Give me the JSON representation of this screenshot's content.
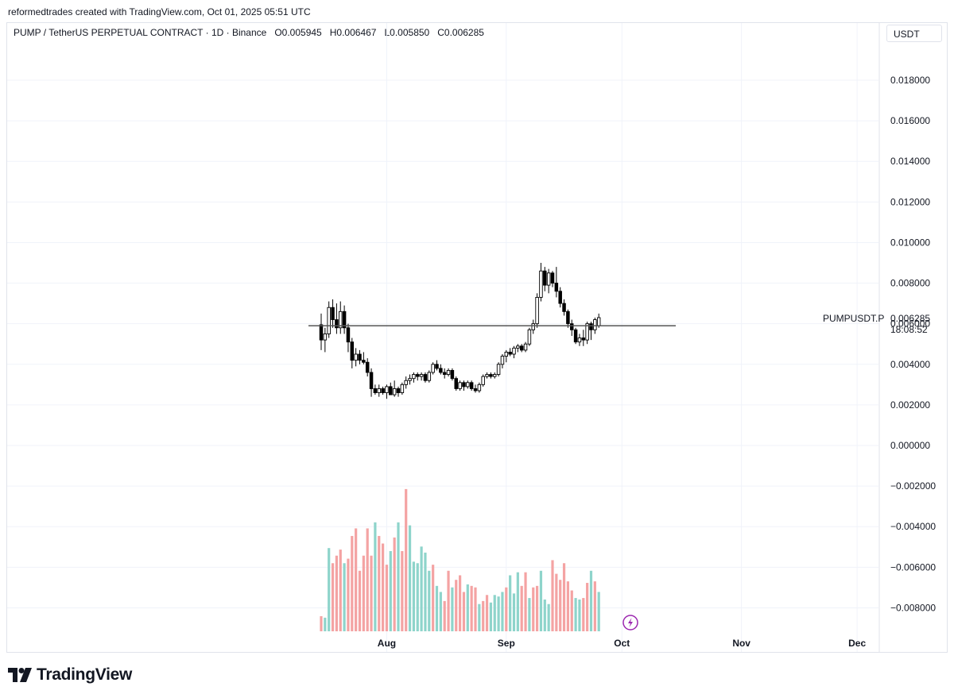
{
  "header": {
    "created_by": "reformedtrades created with TradingView.com, Oct 01, 2025 05:51 UTC"
  },
  "legend": {
    "symbol": "PUMP / TetherUS PERPETUAL CONTRACT · 1D · Binance",
    "open": "O0.005945",
    "high": "H0.006467",
    "low": "L0.005850",
    "close": "C0.006285"
  },
  "currency_button": "USDT",
  "price_label": {
    "ticker": "PUMPUSDT.P",
    "price": "0.006285",
    "countdown": "18:08:52"
  },
  "brand": "TradingView",
  "colors": {
    "up_candle": "#ffffff",
    "down_candle": "#000000",
    "volume_up": "#8ed4cb",
    "volume_down": "#f4a3a3",
    "horizontal_line": "#555555",
    "grid": "#f0f3fa"
  },
  "chart_data": {
    "type": "candlestick",
    "interval": "1D",
    "y_ticks": [
      "0.018000",
      "0.016000",
      "0.014000",
      "0.012000",
      "0.010000",
      "0.008000",
      "0.006000",
      "0.004000",
      "0.002000",
      "0.000000",
      "−0.002000",
      "−0.004000",
      "−0.006000",
      "−0.008000"
    ],
    "y_tick_values": [
      0.018,
      0.016,
      0.014,
      0.012,
      0.01,
      0.008,
      0.006,
      0.004,
      0.002,
      0.0,
      -0.002,
      -0.004,
      -0.006,
      -0.008
    ],
    "ylim": [
      -0.0092,
      0.0196
    ],
    "x_ticks": [
      {
        "label": "Aug",
        "day": 17
      },
      {
        "label": "Sep",
        "day": 48
      },
      {
        "label": "Oct",
        "day": 78
      },
      {
        "label": "Nov",
        "day": 109
      },
      {
        "label": "Dec",
        "day": 139
      }
    ],
    "start_date": "2025-07-15",
    "horizontal_level": 0.0059,
    "candles": [
      [
        0.00595,
        0.0065,
        0.0047,
        0.0052
      ],
      [
        0.0052,
        0.0058,
        0.0046,
        0.0055
      ],
      [
        0.0055,
        0.0071,
        0.0053,
        0.0068
      ],
      [
        0.0068,
        0.0072,
        0.0058,
        0.0062
      ],
      [
        0.0062,
        0.007,
        0.0055,
        0.0058
      ],
      [
        0.0058,
        0.0071,
        0.0055,
        0.0066
      ],
      [
        0.0066,
        0.0069,
        0.0055,
        0.0058
      ],
      [
        0.0058,
        0.006,
        0.0046,
        0.0051
      ],
      [
        0.0051,
        0.0053,
        0.0038,
        0.0042
      ],
      [
        0.0042,
        0.0048,
        0.0039,
        0.0045
      ],
      [
        0.0045,
        0.0047,
        0.004,
        0.0042
      ],
      [
        0.0042,
        0.0046,
        0.004,
        0.0041
      ],
      [
        0.0041,
        0.0043,
        0.0034,
        0.0036
      ],
      [
        0.0036,
        0.0038,
        0.0024,
        0.0028
      ],
      [
        0.0028,
        0.003,
        0.0025,
        0.0026
      ],
      [
        0.0026,
        0.003,
        0.0024,
        0.0028
      ],
      [
        0.0028,
        0.0029,
        0.0025,
        0.0026
      ],
      [
        0.0026,
        0.003,
        0.0023,
        0.0029
      ],
      [
        0.0029,
        0.0031,
        0.0025,
        0.0025
      ],
      [
        0.0025,
        0.0032,
        0.0024,
        0.0028
      ],
      [
        0.0028,
        0.0029,
        0.0024,
        0.0026
      ],
      [
        0.0026,
        0.0031,
        0.0025,
        0.003
      ],
      [
        0.003,
        0.0034,
        0.0028,
        0.0032
      ],
      [
        0.0032,
        0.0035,
        0.003,
        0.0033
      ],
      [
        0.0033,
        0.0036,
        0.0031,
        0.0035
      ],
      [
        0.0035,
        0.0036,
        0.0032,
        0.0034
      ],
      [
        0.0034,
        0.0036,
        0.0032,
        0.0035
      ],
      [
        0.0035,
        0.0036,
        0.0031,
        0.0032
      ],
      [
        0.0032,
        0.0037,
        0.0031,
        0.0036
      ],
      [
        0.0036,
        0.0041,
        0.0035,
        0.004
      ],
      [
        0.004,
        0.0042,
        0.0037,
        0.0038
      ],
      [
        0.0038,
        0.004,
        0.0035,
        0.0036
      ],
      [
        0.0036,
        0.0038,
        0.0033,
        0.0035
      ],
      [
        0.0035,
        0.0038,
        0.0034,
        0.0037
      ],
      [
        0.0037,
        0.0038,
        0.0032,
        0.0033
      ],
      [
        0.0033,
        0.0034,
        0.0027,
        0.0028
      ],
      [
        0.0028,
        0.0032,
        0.0027,
        0.0031
      ],
      [
        0.0031,
        0.0032,
        0.0027,
        0.0029
      ],
      [
        0.0029,
        0.0032,
        0.0028,
        0.0031
      ],
      [
        0.0031,
        0.0032,
        0.0027,
        0.0028
      ],
      [
        0.0028,
        0.003,
        0.0026,
        0.0027
      ],
      [
        0.0027,
        0.0031,
        0.0026,
        0.003
      ],
      [
        0.003,
        0.0035,
        0.0029,
        0.0034
      ],
      [
        0.0034,
        0.0036,
        0.0033,
        0.0035
      ],
      [
        0.0035,
        0.0036,
        0.0033,
        0.0034
      ],
      [
        0.0034,
        0.0036,
        0.0033,
        0.0035
      ],
      [
        0.0035,
        0.0041,
        0.0034,
        0.004
      ],
      [
        0.004,
        0.0045,
        0.0038,
        0.0044
      ],
      [
        0.0044,
        0.0047,
        0.0041,
        0.0046
      ],
      [
        0.0046,
        0.0048,
        0.0044,
        0.0045
      ],
      [
        0.0045,
        0.0049,
        0.0043,
        0.0048
      ],
      [
        0.0048,
        0.005,
        0.0046,
        0.0049
      ],
      [
        0.0049,
        0.005,
        0.0046,
        0.0047
      ],
      [
        0.0047,
        0.0051,
        0.0046,
        0.005
      ],
      [
        0.005,
        0.0058,
        0.0049,
        0.0057
      ],
      [
        0.0057,
        0.0062,
        0.0055,
        0.006
      ],
      [
        0.006,
        0.0075,
        0.0058,
        0.0073
      ],
      [
        0.0073,
        0.009,
        0.0071,
        0.0086
      ],
      [
        0.0086,
        0.0088,
        0.0076,
        0.0079
      ],
      [
        0.0079,
        0.0087,
        0.0075,
        0.0085
      ],
      [
        0.0085,
        0.0086,
        0.0078,
        0.008
      ],
      [
        0.008,
        0.0088,
        0.0073,
        0.0076
      ],
      [
        0.0076,
        0.0078,
        0.0068,
        0.007
      ],
      [
        0.007,
        0.0072,
        0.0064,
        0.0066
      ],
      [
        0.0066,
        0.0067,
        0.0058,
        0.006
      ],
      [
        0.006,
        0.0062,
        0.0054,
        0.0057
      ],
      [
        0.0057,
        0.0058,
        0.005,
        0.0051
      ],
      [
        0.0051,
        0.0055,
        0.0049,
        0.0053
      ],
      [
        0.0053,
        0.0057,
        0.0049,
        0.0052
      ],
      [
        0.0052,
        0.0061,
        0.005,
        0.006
      ],
      [
        0.006,
        0.0061,
        0.0052,
        0.0057
      ],
      [
        0.0057,
        0.0063,
        0.0055,
        0.0062
      ],
      [
        0.0059,
        0.0065,
        0.0058,
        0.0063
      ]
    ],
    "volume_rel": [
      0.1,
      0.09,
      0.55,
      0.45,
      0.5,
      0.54,
      0.45,
      0.48,
      0.63,
      0.68,
      0.4,
      0.5,
      0.68,
      0.5,
      0.72,
      0.63,
      0.58,
      0.44,
      0.53,
      0.62,
      0.72,
      0.53,
      0.94,
      0.7,
      0.46,
      0.45,
      0.56,
      0.52,
      0.4,
      0.44,
      0.3,
      0.26,
      0.2,
      0.4,
      0.29,
      0.34,
      0.37,
      0.26,
      0.31,
      0.3,
      0.29,
      0.18,
      0.2,
      0.24,
      0.19,
      0.24,
      0.23,
      0.26,
      0.29,
      0.37,
      0.25,
      0.39,
      0.3,
      0.39,
      0.22,
      0.29,
      0.3,
      0.4,
      0.21,
      0.18,
      0.47,
      0.38,
      0.34,
      0.45,
      0.33,
      0.27,
      0.22,
      0.21,
      0.22,
      0.32,
      0.4,
      0.33,
      0.26
    ],
    "volume_up": [
      false,
      true,
      true,
      false,
      false,
      false,
      true,
      false,
      false,
      false,
      false,
      false,
      false,
      false,
      true,
      false,
      false,
      false,
      true,
      false,
      true,
      false,
      false,
      true,
      true,
      true,
      true,
      true,
      true,
      false,
      true,
      true,
      false,
      false,
      true,
      false,
      false,
      false,
      true,
      false,
      false,
      true,
      false,
      false,
      true,
      true,
      true,
      true,
      false,
      true,
      true,
      true,
      false,
      false,
      true,
      false,
      false,
      true,
      true,
      true,
      false,
      false,
      false,
      false,
      false,
      false,
      true,
      true,
      false,
      false,
      true,
      false,
      true
    ],
    "volume_max_value_y": -0.0017
  }
}
